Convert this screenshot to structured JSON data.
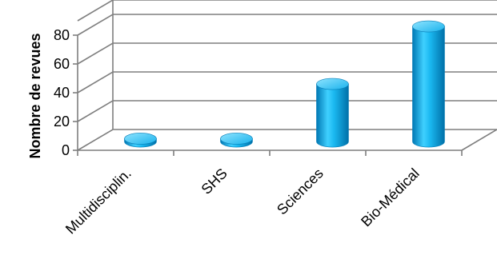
{
  "chart_data": {
    "type": "bar",
    "style": "3d-cylinder",
    "categories": [
      "Multidisciplin.",
      "SHS",
      "Sciences",
      "Bio-Médical"
    ],
    "values": [
      2,
      2,
      40,
      80
    ],
    "ylabel": "Nombre de revues",
    "ylim": [
      0,
      90
    ],
    "yticks": [
      0,
      20,
      40,
      60,
      80
    ],
    "grid": true,
    "legend": "none",
    "colors": {
      "bar": "#00a8e6",
      "bar_dark": "#0070a8",
      "bar_light": "#7fdcff",
      "grid": "#7f7f7f"
    }
  }
}
